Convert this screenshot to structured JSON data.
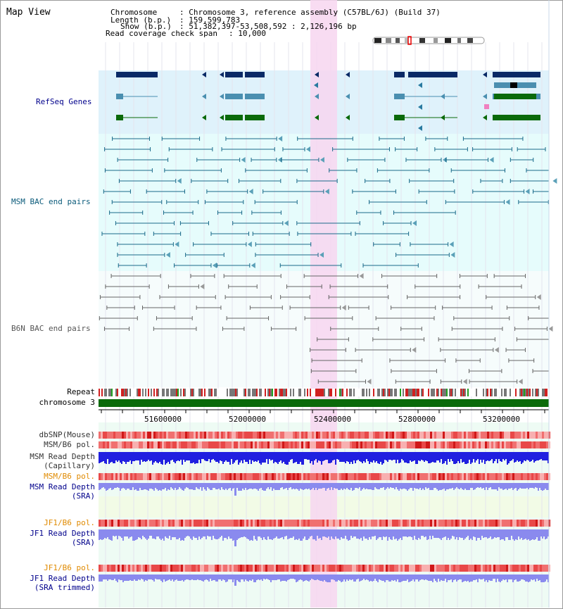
{
  "view": {
    "title": "Map View"
  },
  "header": {
    "chromosome_label": "Chromosome",
    "chromosome_value": ": Chromosome 3, reference assembly (C57BL/6J) (Build 37)",
    "length_label": "Length (b.p.)",
    "length_value": ": 159,599,783",
    "show_label": "Show (b.p.)",
    "show_value": ": 51,382,397-53,508,592 : 2,126,196 bp",
    "coverage_label": "Read coverage check span",
    "coverage_value": ": 10,000"
  },
  "tracks": {
    "refseq": "RefSeq Genes",
    "msm_bac": "MSM BAC end pairs",
    "b6n_bac": "B6N BAC end pairs",
    "repeat": "Repeat",
    "chromosome": "chromosome 3",
    "dbsnp": "dbSNP(Mouse)",
    "msm_b6_pol_1": "MSM/B6 pol.",
    "msm_depth_cap_1": "MSM Read Depth",
    "msm_depth_cap_2": "(Capillary)",
    "msm_b6_pol_2": "MSM/B6 pol.",
    "msm_depth_sra_1": "MSM Read Depth",
    "msm_depth_sra_2": "(SRA)",
    "jf1_b6_pol_1": "JF1/B6 pol.",
    "jf1_depth_sra_1": "JF1 Read Depth",
    "jf1_depth_sra_2": "(SRA)",
    "jf1_b6_pol_2": "JF1/B6 pol.",
    "jf1_depth_trim_1": "JF1 Read Depth",
    "jf1_depth_trim_2": "(SRA trimmed)"
  },
  "axis": {
    "ticks": [
      "51600000",
      "52000000",
      "52400000",
      "52800000",
      "53200000"
    ]
  },
  "colors": {
    "refseq_bg": "#dff2fb",
    "msm_bg": "#e6fcfc",
    "highlight": "#f7d6f0",
    "gene_dark": "#0a2a66",
    "gene_mid": "#4a8fb0",
    "gene_green": "#0a6a0a",
    "msm_line": "#1a6a8a",
    "b6n_line": "#666666",
    "chrom_green": "#0a6a0a",
    "snp_red": "#e05050",
    "depth_blue": "#2020e0",
    "depth_light": "#8a8aee",
    "label_blue": "#00008b",
    "label_orange": "#e08a00",
    "label_teal": "#0a5a7a"
  }
}
